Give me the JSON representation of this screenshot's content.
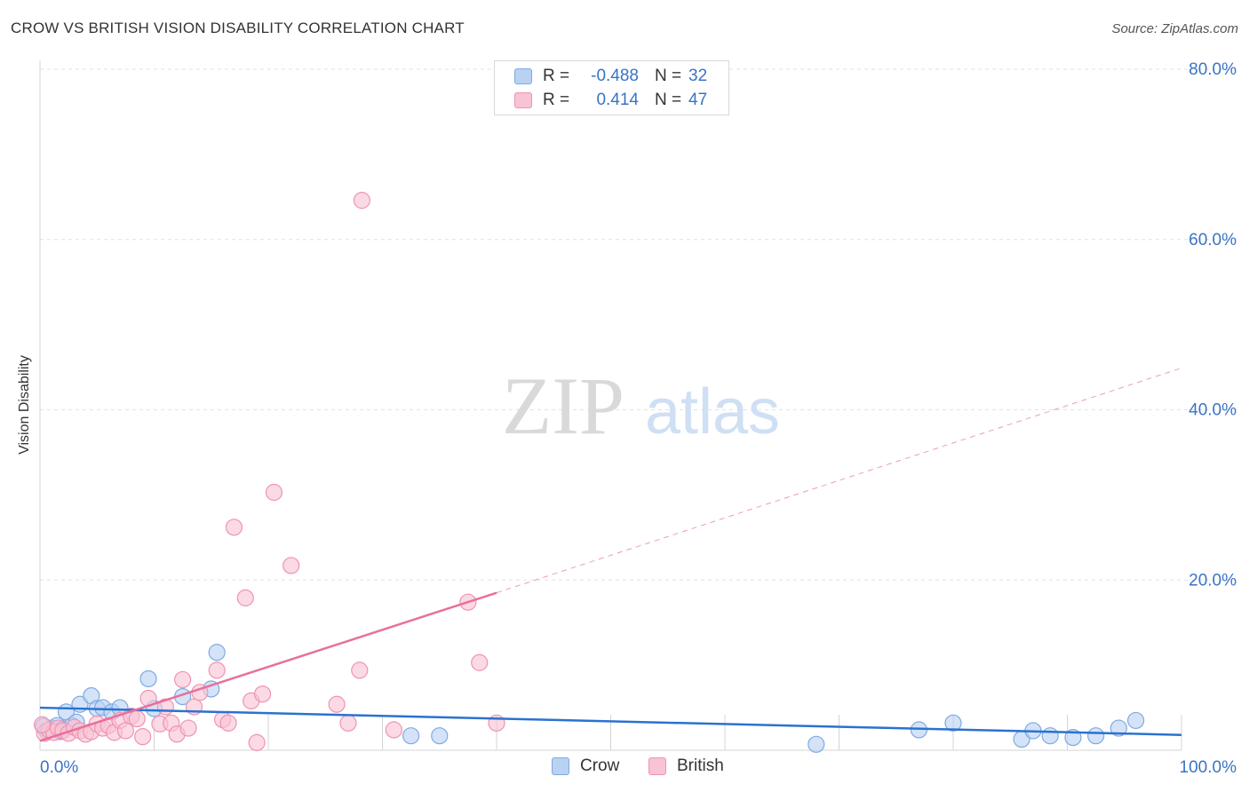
{
  "title": "CROW VS BRITISH VISION DISABILITY CORRELATION CHART",
  "source": "Source: ZipAtlas.com",
  "watermark": {
    "zip": "ZIP",
    "atlas": "atlas"
  },
  "legend": [
    {
      "r_label": "R =",
      "r_value": "-0.488",
      "n_label": "N =",
      "n_value": "32"
    },
    {
      "r_label": "R =",
      "r_value": "0.414",
      "n_label": "N =",
      "n_value": "47"
    }
  ],
  "colors": {
    "crow_fill": "#b9d2f2",
    "crow_stroke": "#7eaae3",
    "crow_line": "#2a72d0",
    "british_fill": "#f8c3d4",
    "british_stroke": "#ee93b3",
    "british_line": "#e8709a",
    "tick_text": "#3a74c4",
    "grid": "#e2e2e2"
  },
  "chart_data": {
    "type": "scatter",
    "title": "CROW VS BRITISH VISION DISABILITY CORRELATION CHART",
    "xlabel": "",
    "ylabel": "Vision Disability",
    "xlim": [
      0,
      100
    ],
    "ylim": [
      0,
      80
    ],
    "x_tick_labels": [
      "0.0%",
      "100.0%"
    ],
    "y_ticks": [
      20,
      40,
      60,
      80
    ],
    "y_tick_labels": [
      "20.0%",
      "40.0%",
      "60.0%",
      "80.0%"
    ],
    "grid": true,
    "legend_position": "bottom",
    "series": [
      {
        "name": "Crow",
        "r": -0.488,
        "n": 32,
        "points": [
          [
            0.3,
            2.8
          ],
          [
            0.6,
            2.3
          ],
          [
            1.0,
            2.6
          ],
          [
            1.5,
            2.9
          ],
          [
            2.0,
            2.5
          ],
          [
            2.3,
            4.5
          ],
          [
            2.8,
            2.9
          ],
          [
            3.2,
            3.3
          ],
          [
            3.5,
            5.4
          ],
          [
            4.5,
            6.4
          ],
          [
            5.0,
            4.9
          ],
          [
            5.5,
            5.0
          ],
          [
            6.3,
            4.5
          ],
          [
            7.0,
            5.0
          ],
          [
            9.5,
            8.4
          ],
          [
            10.0,
            4.9
          ],
          [
            12.5,
            6.3
          ],
          [
            15.0,
            7.2
          ],
          [
            15.5,
            11.5
          ],
          [
            32.5,
            1.7
          ],
          [
            35.0,
            1.7
          ],
          [
            68.0,
            0.7
          ],
          [
            77.0,
            2.4
          ],
          [
            80.0,
            3.2
          ],
          [
            86.0,
            1.3
          ],
          [
            87.0,
            2.3
          ],
          [
            88.5,
            1.7
          ],
          [
            90.5,
            1.5
          ],
          [
            92.5,
            1.7
          ],
          [
            94.5,
            2.6
          ],
          [
            96.0,
            3.5
          ],
          [
            1.8,
            2.2
          ]
        ],
        "trend": {
          "x": [
            0,
            100
          ],
          "y": [
            5.0,
            1.8
          ],
          "dashed_from_x": null
        }
      },
      {
        "name": "British",
        "r": 0.414,
        "n": 47,
        "points": [
          [
            0.4,
            2.0
          ],
          [
            0.8,
            2.4
          ],
          [
            1.2,
            2.1
          ],
          [
            1.6,
            2.6
          ],
          [
            2.0,
            2.3
          ],
          [
            2.5,
            2.0
          ],
          [
            3.0,
            2.7
          ],
          [
            3.5,
            2.3
          ],
          [
            4.0,
            1.9
          ],
          [
            4.5,
            2.2
          ],
          [
            5.0,
            3.1
          ],
          [
            5.5,
            2.6
          ],
          [
            6.0,
            2.9
          ],
          [
            6.5,
            2.1
          ],
          [
            7.0,
            3.5
          ],
          [
            7.5,
            2.3
          ],
          [
            8.0,
            4.0
          ],
          [
            8.5,
            3.7
          ],
          [
            9.0,
            1.6
          ],
          [
            9.5,
            6.1
          ],
          [
            10.5,
            3.1
          ],
          [
            11.0,
            5.1
          ],
          [
            11.5,
            3.2
          ],
          [
            12.0,
            1.9
          ],
          [
            12.5,
            8.3
          ],
          [
            13.0,
            2.6
          ],
          [
            13.5,
            5.1
          ],
          [
            14.0,
            6.8
          ],
          [
            15.5,
            9.4
          ],
          [
            16.0,
            3.6
          ],
          [
            16.5,
            3.2
          ],
          [
            17.0,
            26.2
          ],
          [
            18.0,
            17.9
          ],
          [
            18.5,
            5.8
          ],
          [
            19.0,
            0.9
          ],
          [
            19.5,
            6.6
          ],
          [
            20.5,
            30.3
          ],
          [
            22.0,
            21.7
          ],
          [
            26.0,
            5.4
          ],
          [
            27.0,
            3.2
          ],
          [
            28.0,
            9.4
          ],
          [
            28.2,
            64.6
          ],
          [
            31.0,
            2.4
          ],
          [
            37.5,
            17.4
          ],
          [
            38.5,
            10.3
          ],
          [
            40.0,
            3.2
          ],
          [
            0.2,
            3.0
          ]
        ],
        "trend": {
          "x": [
            0,
            40,
            100
          ],
          "y": [
            1.1,
            18.5,
            44.9
          ],
          "dashed_from_x": 40
        }
      }
    ]
  }
}
